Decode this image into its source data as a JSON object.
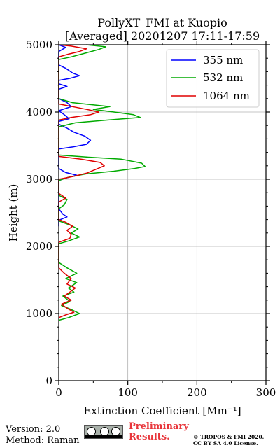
{
  "chart_data": {
    "type": "line",
    "title_line1": "PollyXT_FMI at Kuopio",
    "title_line2": "[Averaged] 20201207 17:11-17:59",
    "xlabel": "Extinction Coefficient [Mm⁻¹]",
    "ylabel": "Height (m)",
    "xlim": [
      0,
      300
    ],
    "ylim": [
      0,
      5000
    ],
    "xticks": [
      0,
      100,
      200,
      300
    ],
    "yticks": [
      0,
      1000,
      2000,
      3000,
      4000,
      5000
    ],
    "grid": true,
    "legend_position": "top-right",
    "series": [
      {
        "name": "355 nm",
        "color": "#0000ff",
        "points": [
          [
            0,
            2300
          ],
          [
            0,
            2390
          ],
          [
            12,
            2440
          ],
          [
            6,
            2480
          ],
          [
            0,
            2560
          ],
          [
            0,
            2980
          ],
          [
            8,
            3010
          ],
          [
            26,
            3060
          ],
          [
            10,
            3100
          ],
          [
            0,
            3160
          ],
          [
            0,
            3450
          ],
          [
            20,
            3480
          ],
          [
            40,
            3520
          ],
          [
            46,
            3580
          ],
          [
            38,
            3640
          ],
          [
            22,
            3700
          ],
          [
            12,
            3760
          ],
          [
            0,
            3820
          ],
          [
            0,
            3860
          ],
          [
            15,
            3900
          ],
          [
            8,
            3960
          ],
          [
            0,
            4020
          ],
          [
            18,
            4080
          ],
          [
            12,
            4140
          ],
          [
            0,
            4200
          ],
          [
            0,
            4340
          ],
          [
            12,
            4380
          ],
          [
            0,
            4420
          ],
          [
            0,
            4470
          ],
          [
            16,
            4500
          ],
          [
            30,
            4540
          ],
          [
            20,
            4580
          ],
          [
            10,
            4650
          ],
          [
            0,
            4700
          ],
          [
            0,
            4900
          ],
          [
            10,
            4960
          ],
          [
            0,
            5000
          ]
        ]
      },
      {
        "name": "532 nm",
        "color": "#00aa00",
        "points": [
          [
            0,
            900
          ],
          [
            14,
            940
          ],
          [
            30,
            1000
          ],
          [
            18,
            1060
          ],
          [
            4,
            1120
          ],
          [
            16,
            1180
          ],
          [
            6,
            1260
          ],
          [
            22,
            1320
          ],
          [
            14,
            1380
          ],
          [
            26,
            1460
          ],
          [
            10,
            1520
          ],
          [
            26,
            1600
          ],
          [
            12,
            1680
          ],
          [
            0,
            1760
          ],
          [
            0,
            1800
          ],
          [
            0,
            2040
          ],
          [
            14,
            2080
          ],
          [
            30,
            2140
          ],
          [
            18,
            2200
          ],
          [
            28,
            2260
          ],
          [
            16,
            2320
          ],
          [
            0,
            2380
          ],
          [
            0,
            2560
          ],
          [
            8,
            2620
          ],
          [
            12,
            2700
          ],
          [
            0,
            2760
          ],
          [
            0,
            2980
          ],
          [
            14,
            3030
          ],
          [
            40,
            3080
          ],
          [
            80,
            3120
          ],
          [
            110,
            3160
          ],
          [
            125,
            3190
          ],
          [
            120,
            3240
          ],
          [
            90,
            3300
          ],
          [
            40,
            3330
          ],
          [
            0,
            3360
          ],
          [
            0,
            3780
          ],
          [
            24,
            3840
          ],
          [
            70,
            3880
          ],
          [
            118,
            3920
          ],
          [
            108,
            3960
          ],
          [
            80,
            4000
          ],
          [
            50,
            4040
          ],
          [
            74,
            4080
          ],
          [
            20,
            4140
          ],
          [
            0,
            4200
          ],
          [
            0,
            4780
          ],
          [
            18,
            4820
          ],
          [
            40,
            4880
          ],
          [
            58,
            4930
          ],
          [
            68,
            4970
          ],
          [
            40,
            5000
          ]
        ]
      },
      {
        "name": "1064 nm",
        "color": "#e00000",
        "points": [
          [
            0,
            940
          ],
          [
            10,
            980
          ],
          [
            22,
            1020
          ],
          [
            12,
            1080
          ],
          [
            4,
            1140
          ],
          [
            18,
            1200
          ],
          [
            8,
            1260
          ],
          [
            16,
            1320
          ],
          [
            24,
            1380
          ],
          [
            12,
            1440
          ],
          [
            18,
            1520
          ],
          [
            8,
            1600
          ],
          [
            0,
            1680
          ],
          [
            0,
            2060
          ],
          [
            16,
            2120
          ],
          [
            18,
            2180
          ],
          [
            12,
            2240
          ],
          [
            20,
            2300
          ],
          [
            10,
            2360
          ],
          [
            0,
            2400
          ],
          [
            0,
            2660
          ],
          [
            10,
            2720
          ],
          [
            0,
            2790
          ],
          [
            0,
            3000
          ],
          [
            20,
            3040
          ],
          [
            40,
            3090
          ],
          [
            52,
            3140
          ],
          [
            66,
            3200
          ],
          [
            60,
            3250
          ],
          [
            32,
            3300
          ],
          [
            0,
            3340
          ],
          [
            0,
            3880
          ],
          [
            18,
            3920
          ],
          [
            46,
            3960
          ],
          [
            58,
            4000
          ],
          [
            40,
            4040
          ],
          [
            20,
            4080
          ],
          [
            0,
            4120
          ],
          [
            0,
            4820
          ],
          [
            14,
            4860
          ],
          [
            30,
            4900
          ],
          [
            40,
            4940
          ],
          [
            18,
            4980
          ],
          [
            0,
            5000
          ]
        ]
      }
    ]
  },
  "footer": {
    "version": "Version: 2.0",
    "method": "Method: Raman",
    "preliminary_line1": "Preliminary",
    "preliminary_line2": "Results.",
    "copyright_line1": "© TROPOS & FMI 2020.",
    "copyright_line2": "CC BY SA 4.0 License.",
    "badge_icon": "cc-by-sa-icon"
  }
}
